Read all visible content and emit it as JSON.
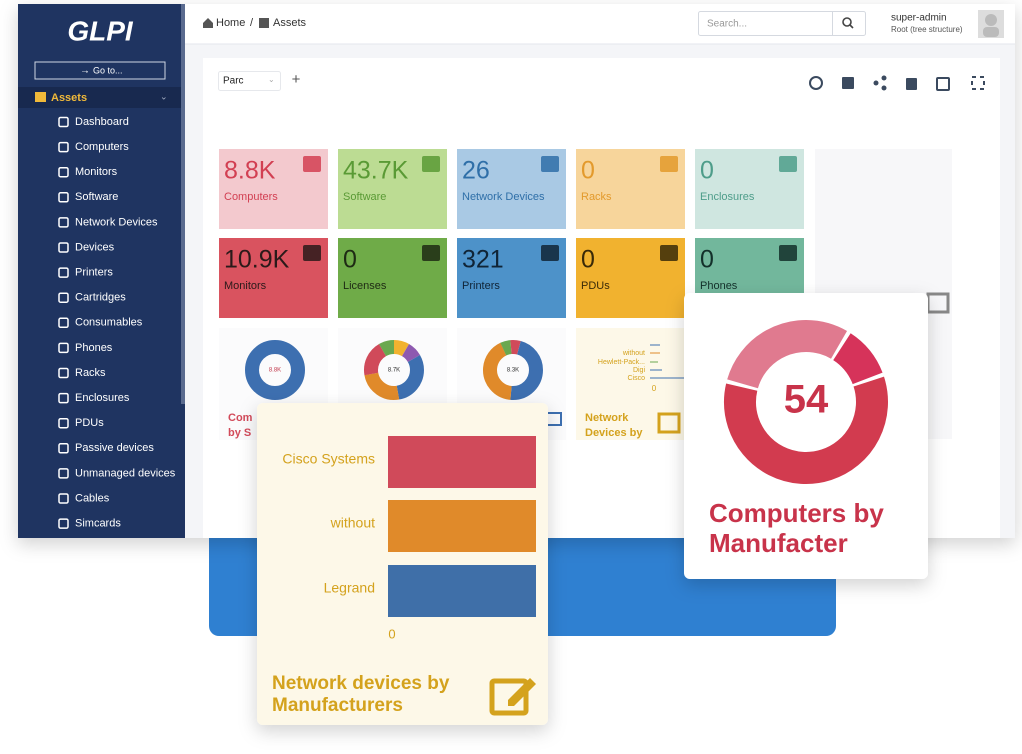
{
  "sidebar": {
    "logo": "GLPI",
    "goto": "Go to...",
    "section": "Assets",
    "items": [
      "Dashboard",
      "Computers",
      "Monitors",
      "Software",
      "Network Devices",
      "Devices",
      "Printers",
      "Cartridges",
      "Consumables",
      "Phones",
      "Racks",
      "Enclosures",
      "PDUs",
      "Passive devices",
      "Unmanaged devices",
      "Cables",
      "Simcards"
    ]
  },
  "header": {
    "breadcrumb": [
      "Home",
      "Assets"
    ],
    "separator": "/",
    "search_placeholder": "Search...",
    "user": {
      "name": "super-admin",
      "role": "Root (tree structure)"
    }
  },
  "toolbar": {
    "dashboard": "Parc",
    "add": "+"
  },
  "tiles": [
    {
      "value": "8.8K",
      "label": "Computers"
    },
    {
      "value": "43.7K",
      "label": "Software"
    },
    {
      "value": "26",
      "label": "Network Devices"
    },
    {
      "value": "0",
      "label": "Racks"
    },
    {
      "value": "0",
      "label": "Enclosures"
    },
    {
      "value": "10.9K",
      "label": "Monitors"
    },
    {
      "value": "0",
      "label": "Licenses"
    },
    {
      "value": "321",
      "label": "Printers"
    },
    {
      "value": "0",
      "label": "PDUs"
    },
    {
      "value": "0",
      "label": "Phones"
    }
  ],
  "mini": [
    {
      "center": "8.8K",
      "title": [
        "Com",
        "by S"
      ]
    },
    {
      "center": "8.7K"
    },
    {
      "center": "8.3K"
    },
    {
      "legend": [
        "without",
        "Hewlett-Pack...",
        "Digi",
        "Cisco"
      ],
      "axis": "0",
      "title": [
        "Network",
        "Devices by"
      ]
    }
  ],
  "cards": {
    "bar": {
      "categories": [
        "Cisco Systems",
        "without",
        "Legrand"
      ],
      "axis": "0",
      "title": [
        "Network devices by",
        "Manufacturers"
      ]
    },
    "donut": {
      "value": "54",
      "title": [
        "Computers by",
        "Manufacter"
      ]
    }
  }
}
